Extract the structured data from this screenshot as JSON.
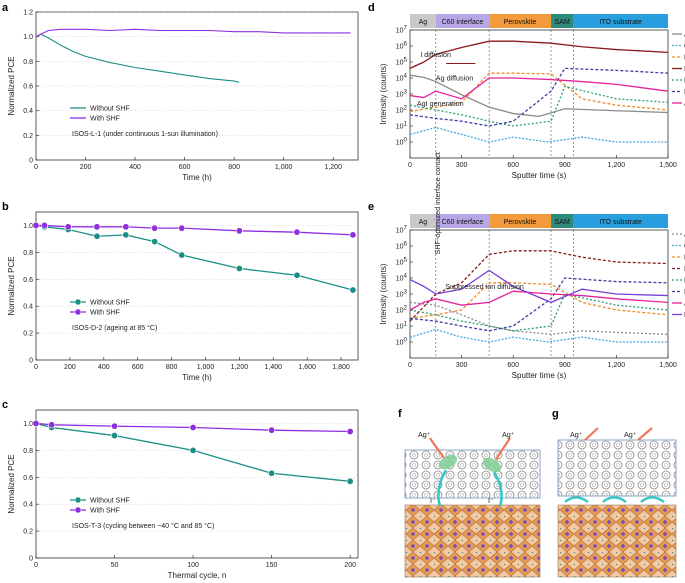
{
  "figure": {
    "panel_letters": [
      "a",
      "b",
      "c",
      "d",
      "e",
      "f",
      "g"
    ]
  },
  "colors": {
    "without": "#1a8f86",
    "with": "#8f2fe0",
    "ag": "#8a8a8a",
    "c60": "#43a8e0",
    "pbi2": "#f08a2a",
    "i": "#8b1a1a",
    "po3": "#2b9e6d",
    "ino2": "#3a3fa0",
    "agi2": "#e8239a",
    "f": "#7a3fd6",
    "seg_ag": "#c9c9c9",
    "seg_c60": "#b7a7e6",
    "seg_pero": "#f39a3d",
    "seg_sam": "#2e8b7a",
    "seg_ito": "#2a9fe0"
  },
  "chart_data": [
    {
      "id": "a",
      "type": "line",
      "xlabel": "Time (h)",
      "ylabel": "Normalized PCE",
      "xlim": [
        0,
        1300
      ],
      "ylim": [
        0,
        1.2
      ],
      "xticks": [
        0,
        200,
        400,
        600,
        800,
        1000,
        1200
      ],
      "xticklabels": [
        "0",
        "200",
        "400",
        "600",
        "800",
        "1,000",
        "1,200"
      ],
      "yticks": [
        0,
        0.2,
        0.4,
        0.6,
        0.8,
        1.0,
        1.2
      ],
      "yticklabels": [
        "0",
        "0.2",
        "0.4",
        "0.6",
        "0.8",
        "1.0",
        "1.2"
      ],
      "annotation": "ISOS-L-1 (under continuous 1-sun illumination)",
      "series": [
        {
          "name": "Without SHF",
          "x": [
            0,
            20,
            50,
            100,
            150,
            200,
            300,
            400,
            500,
            600,
            700,
            800,
            820
          ],
          "y": [
            1.0,
            1.02,
            0.99,
            0.93,
            0.88,
            0.84,
            0.79,
            0.75,
            0.72,
            0.69,
            0.66,
            0.64,
            0.63
          ]
        },
        {
          "name": "With SHF",
          "x": [
            0,
            50,
            100,
            200,
            300,
            400,
            500,
            600,
            700,
            800,
            900,
            1000,
            1100,
            1200,
            1270
          ],
          "y": [
            1.0,
            1.05,
            1.06,
            1.06,
            1.05,
            1.06,
            1.05,
            1.05,
            1.05,
            1.04,
            1.04,
            1.03,
            1.03,
            1.03,
            1.03
          ]
        }
      ]
    },
    {
      "id": "b",
      "type": "line",
      "xlabel": "Time (h)",
      "ylabel": "Normalized PCE",
      "xlim": [
        0,
        1900
      ],
      "ylim": [
        0,
        1.1
      ],
      "xticks": [
        0,
        200,
        400,
        600,
        800,
        1000,
        1200,
        1400,
        1600,
        1800
      ],
      "xticklabels": [
        "0",
        "200",
        "400",
        "600",
        "800",
        "1,000",
        "1,200",
        "1,400",
        "1,600",
        "1,800"
      ],
      "yticks": [
        0,
        0.2,
        0.4,
        0.6,
        0.8,
        1.0
      ],
      "yticklabels": [
        "0",
        "0.2",
        "0.4",
        "0.6",
        "0.8",
        "1.0"
      ],
      "annotation": "ISOS-D-2 (ageing at 85 °C)",
      "series": [
        {
          "name": "Without SHF",
          "x": [
            0,
            50,
            190,
            360,
            530,
            700,
            860,
            1200,
            1540,
            1870
          ],
          "y": [
            1.0,
            0.99,
            0.97,
            0.92,
            0.93,
            0.88,
            0.78,
            0.68,
            0.63,
            0.52
          ]
        },
        {
          "name": "With SHF",
          "x": [
            0,
            50,
            190,
            360,
            530,
            700,
            860,
            1200,
            1540,
            1870
          ],
          "y": [
            1.0,
            1.0,
            0.99,
            0.99,
            0.99,
            0.98,
            0.98,
            0.96,
            0.95,
            0.93
          ]
        }
      ]
    },
    {
      "id": "c",
      "type": "line",
      "xlabel": "Thermal cycle, n",
      "ylabel": "Normalized PCE",
      "xlim": [
        0,
        205
      ],
      "ylim": [
        0,
        1.1
      ],
      "xticks": [
        0,
        50,
        100,
        150,
        200
      ],
      "xticklabels": [
        "0",
        "50",
        "100",
        "150",
        "200"
      ],
      "yticks": [
        0,
        0.2,
        0.4,
        0.6,
        0.8,
        1.0
      ],
      "yticklabels": [
        "0",
        "0.2",
        "0.4",
        "0.6",
        "0.8",
        "1.0"
      ],
      "annotation": "ISOS-T-3 (cycling between −40 °C and 85 °C)",
      "series": [
        {
          "name": "Without SHF",
          "x": [
            0,
            10,
            50,
            100,
            150,
            200
          ],
          "y": [
            1.0,
            0.97,
            0.91,
            0.8,
            0.63,
            0.57
          ]
        },
        {
          "name": "With SHF",
          "x": [
            0,
            10,
            50,
            100,
            150,
            200
          ],
          "y": [
            1.0,
            0.99,
            0.98,
            0.97,
            0.95,
            0.94
          ]
        }
      ]
    },
    {
      "id": "d",
      "type": "line",
      "yscale": "log",
      "xlabel": "Sputter time (s)",
      "ylabel": "Intensity (counts)",
      "xlim": [
        0,
        1500
      ],
      "ylim": [
        0.1,
        10000000.0
      ],
      "xticks": [
        0,
        300,
        600,
        900,
        1200,
        1500
      ],
      "xticklabels": [
        "0",
        "300",
        "600",
        "900",
        "1,200",
        "1,500"
      ],
      "ytick_exponents": [
        0,
        1,
        2,
        3,
        4,
        5,
        6,
        7
      ],
      "segments": [
        {
          "label": "Ag",
          "start": 0,
          "end": 150
        },
        {
          "label": "C60 interface",
          "start": 150,
          "end": 460
        },
        {
          "label": "Perovskite",
          "start": 460,
          "end": 820
        },
        {
          "label": "SAM",
          "start": 820,
          "end": 950
        },
        {
          "label": "ITO substrate",
          "start": 950,
          "end": 1500
        }
      ],
      "annotations": [
        "I diffusion",
        "Ag diffusion",
        "AgI generation"
      ],
      "series": [
        {
          "name": "Ag⁻",
          "x": [
            0,
            80,
            150,
            300,
            460,
            600,
            750,
            900,
            1200,
            1500
          ],
          "y": [
            15000,
            11000,
            6000,
            900,
            150,
            60,
            40,
            120,
            90,
            70
          ]
        },
        {
          "name": "C60⁻",
          "x": [
            0,
            150,
            300,
            460,
            600,
            800,
            1000,
            1200,
            1500
          ],
          "y": [
            3,
            8,
            3,
            1,
            2,
            1,
            2,
            1,
            1
          ]
        },
        {
          "name": "PbI2⁻",
          "x": [
            0,
            150,
            300,
            460,
            600,
            820,
            1000,
            1200,
            1500
          ],
          "y": [
            80,
            150,
            300,
            20000,
            20000,
            18000,
            500,
            200,
            100
          ]
        },
        {
          "name": "I⁻",
          "x": [
            0,
            80,
            150,
            300,
            460,
            600,
            820,
            1000,
            1200,
            1500
          ],
          "y": [
            40000,
            100000,
            300000,
            800000,
            2000000,
            2000000,
            1500000,
            900000,
            600000,
            400000
          ]
        },
        {
          "name": "PO3⁻",
          "x": [
            0,
            150,
            300,
            460,
            600,
            820,
            900,
            1200,
            1500
          ],
          "y": [
            200,
            100,
            50,
            20,
            10,
            20,
            3000,
            500,
            300
          ]
        },
        {
          "name": "InO2⁻",
          "x": [
            0,
            150,
            300,
            460,
            600,
            820,
            900,
            1200,
            1500
          ],
          "y": [
            50,
            30,
            20,
            10,
            20,
            1500,
            40000,
            30000,
            20000
          ]
        },
        {
          "name": "AgI2⁻",
          "x": [
            0,
            80,
            150,
            300,
            460,
            600,
            820,
            1000,
            1200,
            1500
          ],
          "y": [
            800,
            600,
            1500,
            500,
            10000,
            10000,
            8000,
            6000,
            4000,
            1500
          ]
        }
      ]
    },
    {
      "id": "e",
      "type": "line",
      "yscale": "log",
      "xlabel": "Sputter time (s)",
      "ylabel": "Intensity (counts)",
      "xlim": [
        0,
        1500
      ],
      "ylim": [
        0.1,
        10000000.0
      ],
      "xticks": [
        0,
        300,
        600,
        900,
        1200,
        1500
      ],
      "xticklabels": [
        "0",
        "300",
        "600",
        "900",
        "1,200",
        "1,500"
      ],
      "ytick_exponents": [
        0,
        1,
        2,
        3,
        4,
        5,
        6,
        7
      ],
      "segments": [
        {
          "label": "Ag",
          "start": 0,
          "end": 150
        },
        {
          "label": "C60 interface",
          "start": 150,
          "end": 460
        },
        {
          "label": "Perovskite",
          "start": 460,
          "end": 820
        },
        {
          "label": "SAM",
          "start": 820,
          "end": 950
        },
        {
          "label": "ITO substrate",
          "start": 950,
          "end": 1500
        }
      ],
      "annotations": [
        "SHF-optimized interface contact",
        "Suppressed ion diffusion"
      ],
      "series": [
        {
          "name": "Ag⁻",
          "x": [
            0,
            150,
            300,
            460,
            600,
            820,
            1000,
            1200,
            1500
          ],
          "y": [
            300,
            200,
            50,
            10,
            5,
            3,
            5,
            4,
            3
          ]
        },
        {
          "name": "C60⁻",
          "x": [
            0,
            150,
            300,
            460,
            600,
            800,
            1000,
            1200,
            1500
          ],
          "y": [
            2,
            6,
            2,
            1,
            2,
            1,
            2,
            1,
            1
          ]
        },
        {
          "name": "PbI2⁻",
          "x": [
            0,
            150,
            300,
            460,
            600,
            820,
            1000,
            1200,
            1500
          ],
          "y": [
            30,
            50,
            100,
            5000,
            5000,
            4000,
            300,
            100,
            50
          ]
        },
        {
          "name": "I⁻",
          "x": [
            0,
            150,
            300,
            460,
            600,
            820,
            1000,
            1200,
            1500
          ],
          "y": [
            20,
            1000,
            5000,
            300000,
            500000,
            500000,
            200000,
            100000,
            80000
          ]
        },
        {
          "name": "PO3⁻",
          "x": [
            0,
            150,
            300,
            460,
            600,
            820,
            900,
            1200,
            1500
          ],
          "y": [
            100,
            50,
            20,
            10,
            5,
            10,
            1000,
            200,
            100
          ]
        },
        {
          "name": "InO2⁻",
          "x": [
            0,
            150,
            300,
            460,
            600,
            820,
            900,
            1200,
            1500
          ],
          "y": [
            30,
            20,
            10,
            5,
            10,
            500,
            10000,
            6000,
            5000
          ]
        },
        {
          "name": "AgI2⁻",
          "x": [
            0,
            80,
            150,
            300,
            460,
            600,
            820,
            1000,
            1200,
            1500
          ],
          "y": [
            100,
            300,
            500,
            200,
            300,
            1500,
            1000,
            800,
            500,
            300
          ]
        },
        {
          "name": "F⁻",
          "x": [
            0,
            80,
            150,
            300,
            460,
            600,
            820,
            1000,
            1200,
            1500
          ],
          "y": [
            8000,
            3000,
            1000,
            2000,
            30000,
            3000,
            300,
            2000,
            1000,
            800
          ]
        }
      ]
    }
  ],
  "legends": {
    "a": [
      "Without SHF",
      "With SHF"
    ],
    "b": [
      "Without SHF",
      "With SHF"
    ],
    "c": [
      "Without SHF",
      "With SHF"
    ]
  },
  "schematic": {
    "f": {
      "labels": [
        "Ag⁺",
        "Ag⁺",
        "I⁻",
        "I⁻"
      ]
    },
    "g": {
      "labels": [
        "Ag⁺",
        "Ag⁺"
      ]
    }
  }
}
